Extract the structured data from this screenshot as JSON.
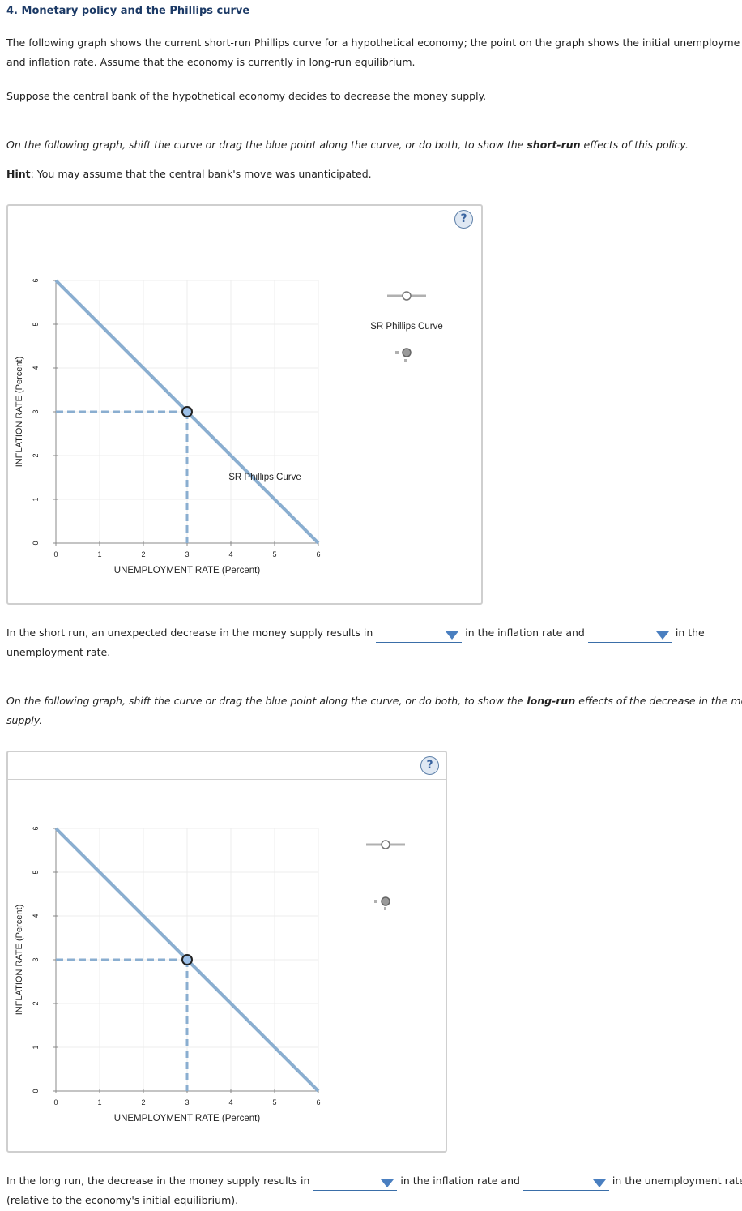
{
  "title": "4. Monetary policy and the Phillips curve",
  "intro": {
    "line1": "The following graph shows the current short-run Phillips curve for a hypothetical economy; the point on the graph shows the initial unemployment rat",
    "line2": "and inflation rate. Assume that the economy is currently in long-run equilibrium.",
    "scenario": "Suppose the central bank of the hypothetical economy decides to decrease the money supply."
  },
  "q1": {
    "instruction_pre": "On the following graph, shift the curve or drag the blue point along the curve, or do both, to show the ",
    "instruction_bold": "short-run",
    "instruction_post": " effects of this policy.",
    "hint_label": "Hint",
    "hint_text": ": You may assume that the central bank's move was unanticipated.",
    "sentence_part1": "In the short run, an unexpected decrease in the money supply results in",
    "sentence_part2": "in the inflation rate and",
    "sentence_part3": "in the",
    "sentence_line2": "unemployment rate."
  },
  "q2": {
    "instruction_pre": "On the following graph, shift the curve or drag the blue point along the curve, or do both, to show the ",
    "instruction_bold": "long-run",
    "instruction_post": " effects of the decrease in the money",
    "instruction_line2": "supply.",
    "sentence_part1": "In the long run, the decrease in the money supply results in",
    "sentence_part2": "in the inflation rate and",
    "sentence_part3": "in the unemployment rate",
    "sentence_line2": "(relative to the economy's initial equilibrium)."
  },
  "help_label": "?",
  "graph1": {
    "curve_label": "SR Phillips Curve",
    "legend_line_label": "SR Phillips Curve"
  },
  "graph2": {
    "curve_label": "",
    "legend_line_label": ""
  },
  "chart_data": [
    {
      "type": "line",
      "xlabel": "UNEMPLOYMENT RATE (Percent)",
      "ylabel": "INFLATION RATE (Percent)",
      "xlim": [
        0,
        6
      ],
      "ylim": [
        0,
        6
      ],
      "xticks": [
        "0",
        "1",
        "2",
        "3",
        "4",
        "5",
        "6"
      ],
      "yticks": [
        "0",
        "1",
        "2",
        "3",
        "4",
        "5",
        "6"
      ],
      "grid": true,
      "series": [
        {
          "name": "SR Phillips Curve",
          "x": [
            0,
            6
          ],
          "y": [
            6,
            0
          ]
        }
      ],
      "point": {
        "x": 3,
        "y": 3
      }
    },
    {
      "type": "line",
      "xlabel": "UNEMPLOYMENT RATE (Percent)",
      "ylabel": "INFLATION RATE (Percent)",
      "xlim": [
        0,
        6
      ],
      "ylim": [
        0,
        6
      ],
      "xticks": [
        "0",
        "1",
        "2",
        "3",
        "4",
        "5",
        "6"
      ],
      "yticks": [
        "0",
        "1",
        "2",
        "3",
        "4",
        "5",
        "6"
      ],
      "grid": true,
      "series": [
        {
          "x": [
            0,
            6
          ],
          "y": [
            6,
            0
          ]
        }
      ],
      "point": {
        "x": 3,
        "y": 3
      }
    }
  ],
  "colors": {
    "curve": "#8aaed0",
    "guide": "#8aaed0",
    "point_fill": "#9dc0e8",
    "grid": "#ececec",
    "legend_gray": "#b0b0b0"
  }
}
